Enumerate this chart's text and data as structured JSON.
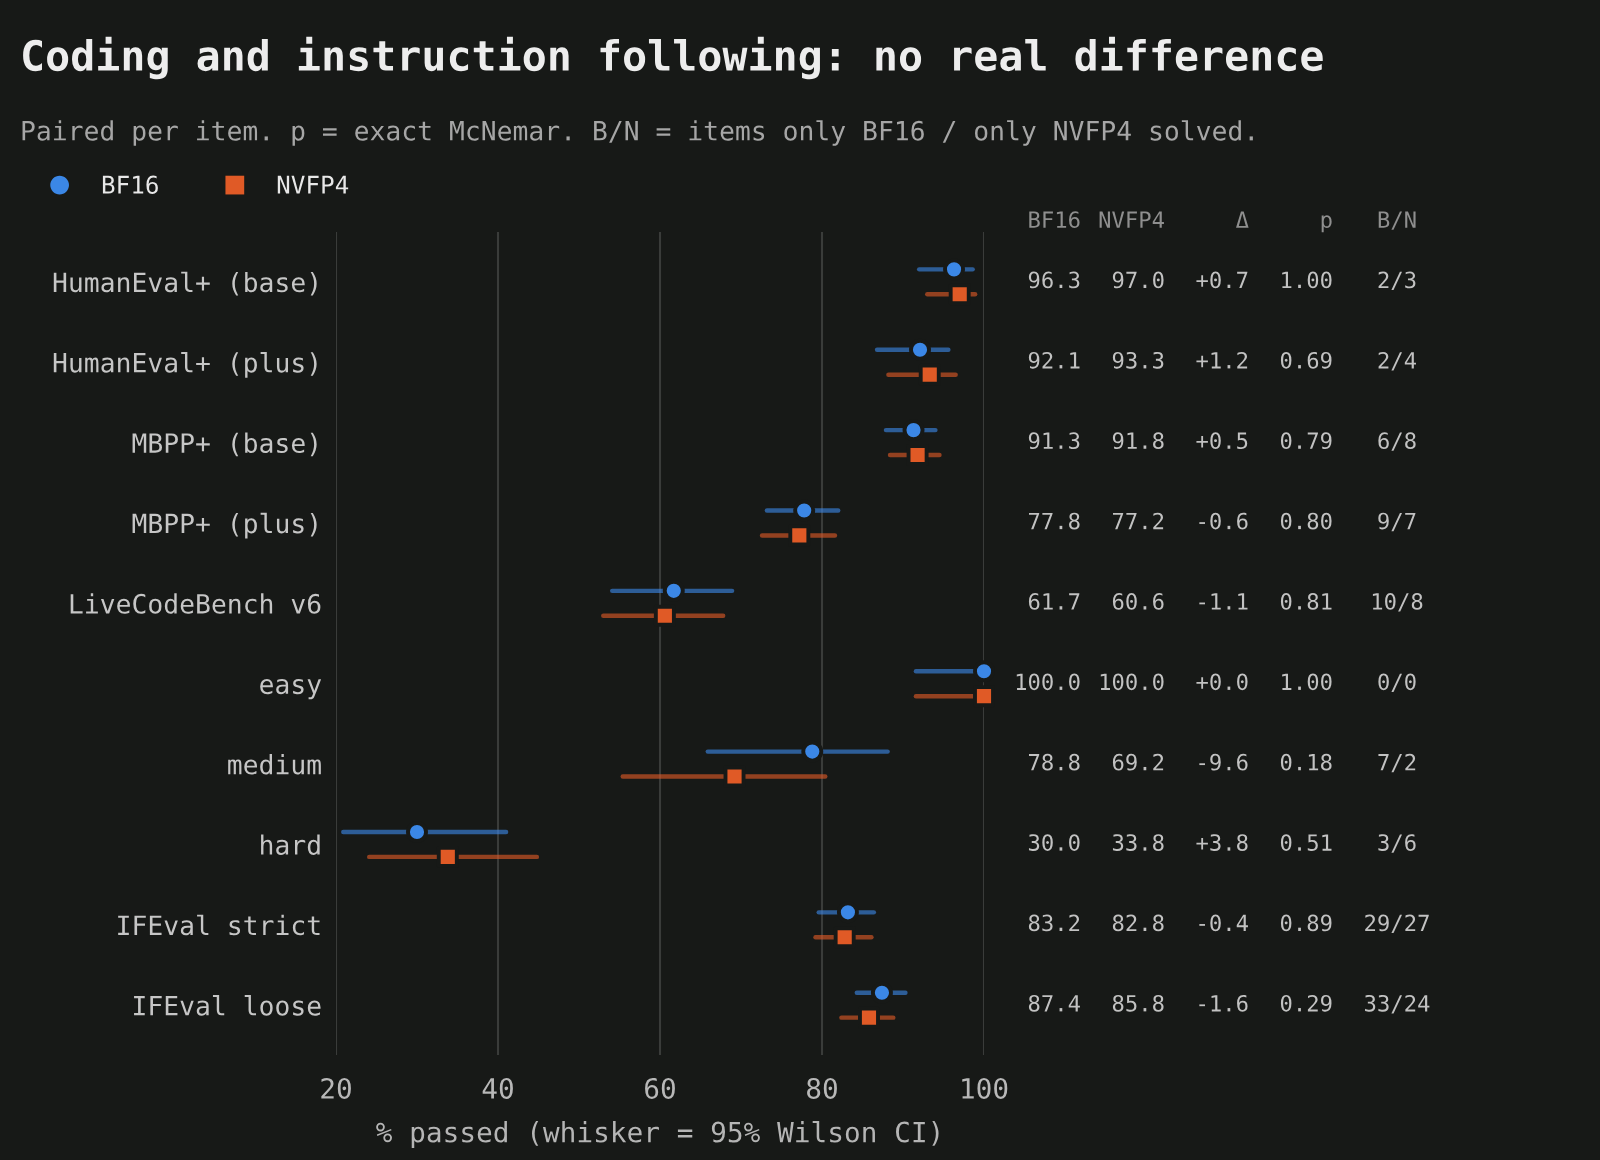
{
  "chart_data": {
    "type": "scatter",
    "orientation": "horizontal",
    "title": "Coding and instruction following: no real difference",
    "subtitle": "Paired per item. p = exact McNemar. B/N = items only BF16 / only NVFP4 solved.",
    "xlabel": "% passed (whisker = 95% Wilson CI)",
    "categories": [
      "HumanEval+ (base)",
      "HumanEval+ (plus)",
      "MBPP+ (base)",
      "MBPP+ (plus)",
      "LiveCodeBench v6",
      "easy",
      "medium",
      "hard",
      "IFEval strict",
      "IFEval loose"
    ],
    "series": [
      {
        "name": "BF16",
        "color": "#3b87e6",
        "marker": "circle",
        "values": [
          96.3,
          92.1,
          91.3,
          77.8,
          61.7,
          100.0,
          78.8,
          30.0,
          83.2,
          87.4
        ],
        "errors": [
          [
            92.0,
            98.6
          ],
          [
            86.8,
            95.6
          ],
          [
            87.9,
            94.0
          ],
          [
            73.2,
            82.0
          ],
          [
            54.1,
            68.9
          ],
          [
            91.6,
            100.0
          ],
          [
            65.9,
            88.1
          ],
          [
            20.9,
            41.0
          ],
          [
            79.6,
            86.4
          ],
          [
            84.3,
            90.3
          ]
        ],
        "value_labels": [
          "96.3",
          "92.1",
          "91.3",
          "77.8",
          "61.7",
          "100.0",
          "78.8",
          "30.0",
          "83.2",
          "87.4"
        ]
      },
      {
        "name": "NVFP4",
        "color": "#e05a26",
        "marker": "square",
        "values": [
          97.0,
          93.3,
          91.8,
          77.2,
          60.6,
          100.0,
          69.2,
          33.8,
          82.8,
          85.8
        ],
        "errors": [
          [
            93.0,
            98.9
          ],
          [
            88.2,
            96.5
          ],
          [
            88.4,
            94.5
          ],
          [
            72.6,
            81.6
          ],
          [
            53.0,
            67.8
          ],
          [
            91.6,
            100.0
          ],
          [
            55.4,
            80.4
          ],
          [
            24.1,
            44.8
          ],
          [
            79.2,
            86.1
          ],
          [
            82.4,
            88.8
          ]
        ],
        "value_labels": [
          "97.0",
          "93.3",
          "91.8",
          "77.2",
          "60.6",
          "100.0",
          "69.2",
          "33.8",
          "82.8",
          "85.8"
        ]
      }
    ],
    "annotations": [
      "Δ",
      "p",
      "B/N",
      "+0.7",
      "1.00",
      "2/3",
      "+1.2",
      "0.69",
      "2/4",
      "+0.5",
      "0.79",
      "6/8",
      "-0.6",
      "0.80",
      "9/7",
      "-1.1",
      "0.81",
      "10/8",
      "+0.0",
      "1.00",
      "0/0",
      "-9.6",
      "0.18",
      "7/2",
      "+3.8",
      "0.51",
      "3/6",
      "-0.4",
      "0.89",
      "29/27",
      "-1.6",
      "0.29",
      "33/24"
    ],
    "xlim": [
      20,
      100
    ],
    "xticks": [
      20,
      40,
      60,
      80,
      100
    ],
    "grid": "x",
    "legend": "top left"
  }
}
